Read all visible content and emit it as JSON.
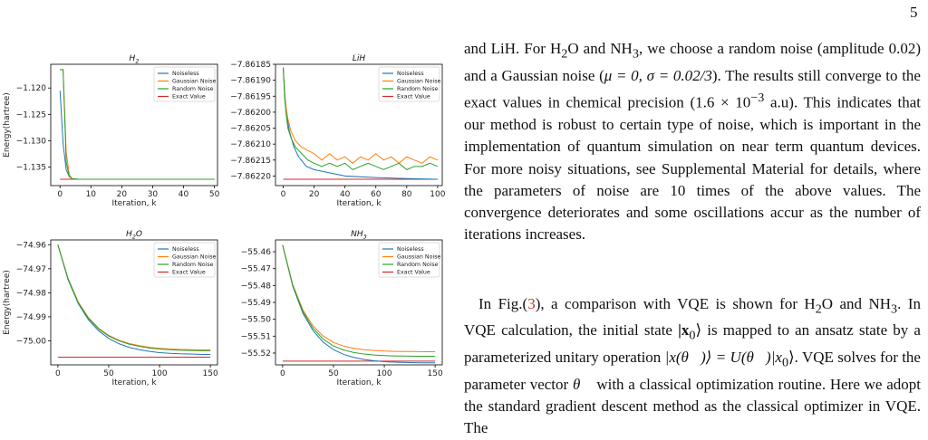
{
  "page": {
    "number": "5"
  },
  "figure": {
    "legend_entries": [
      {
        "name": "Noiseless",
        "color": "#1f77b4"
      },
      {
        "name": "Gaussian Noise",
        "color": "#ff7f0e"
      },
      {
        "name": "Random Noise",
        "color": "#2ca02c"
      },
      {
        "name": "Exact Value",
        "color": "#d62728"
      }
    ]
  },
  "chart_data": [
    {
      "type": "line",
      "title": "H_2",
      "title_parts": {
        "base": "H",
        "sub": "2"
      },
      "xlabel": "Iteration, k",
      "ylabel": "Energy(hartree)",
      "xlim": [
        -3,
        51
      ],
      "ylim": [
        -1.1385,
        -1.1155
      ],
      "xticks": [
        0,
        10,
        20,
        30,
        40,
        50
      ],
      "yticks": [
        -1.12,
        -1.125,
        -1.13,
        -1.135
      ],
      "ytick_labels": [
        "−1.120",
        "−1.125",
        "−1.130",
        "−1.135"
      ],
      "grid": false,
      "legend_position": "top-right",
      "series": [
        {
          "name": "Noiseless",
          "color": "#1f77b4",
          "x": [
            0,
            1,
            2,
            3,
            4,
            6,
            10,
            50
          ],
          "y": [
            -1.1205,
            -1.1305,
            -1.1355,
            -1.1368,
            -1.1372,
            -1.1373,
            -1.1373,
            -1.1373
          ]
        },
        {
          "name": "Gaussian Noise",
          "color": "#ff7f0e",
          "x": [
            0,
            1,
            2,
            3,
            4,
            6,
            10,
            50
          ],
          "y": [
            -1.1165,
            -1.1165,
            -1.132,
            -1.1365,
            -1.1372,
            -1.1373,
            -1.1373,
            -1.1373
          ]
        },
        {
          "name": "Random Noise",
          "color": "#2ca02c",
          "x": [
            0,
            1,
            2,
            3,
            4,
            6,
            10,
            50
          ],
          "y": [
            -1.1165,
            -1.1165,
            -1.134,
            -1.1368,
            -1.1372,
            -1.1373,
            -1.1373,
            -1.1373
          ]
        },
        {
          "name": "Exact Value",
          "color": "#d62728",
          "x": [
            0,
            50
          ],
          "y": [
            -1.1373,
            -1.1373
          ]
        }
      ]
    },
    {
      "type": "line",
      "title": "LiH",
      "xlabel": "Iteration, k",
      "ylabel": "",
      "xlim": [
        -5,
        103
      ],
      "ylim": [
        -7.86223,
        -7.86185
      ],
      "xticks": [
        0,
        20,
        40,
        60,
        80,
        100
      ],
      "yticks": [
        -7.86185,
        -7.8619,
        -7.86195,
        -7.862,
        -7.86205,
        -7.8621,
        -7.86215,
        -7.8622
      ],
      "ytick_labels": [
        "−7.86185",
        "−7.86190",
        "−7.86195",
        "−7.86200",
        "−7.86205",
        "−7.86210",
        "−7.86215",
        "−7.86220"
      ],
      "grid": false,
      "legend_position": "top-right",
      "series": [
        {
          "name": "Noiseless",
          "color": "#1f77b4",
          "x": [
            0,
            1,
            2,
            4,
            7,
            10,
            15,
            20,
            30,
            40,
            60,
            80,
            100
          ],
          "y": [
            -7.86186,
            -7.86194,
            -7.862,
            -7.86206,
            -7.86211,
            -7.86214,
            -7.86217,
            -7.86218,
            -7.86219,
            -7.8622,
            -7.862205,
            -7.862208,
            -7.86221
          ]
        },
        {
          "name": "Gaussian Noise",
          "color": "#ff7f0e",
          "x": [
            0,
            1,
            2,
            3,
            5,
            8,
            12,
            16,
            20,
            25,
            30,
            35,
            40,
            45,
            50,
            55,
            60,
            65,
            70,
            75,
            80,
            85,
            90,
            95,
            100
          ],
          "y": [
            -7.86186,
            -7.86195,
            -7.86199,
            -7.86202,
            -7.86206,
            -7.86209,
            -7.86211,
            -7.86212,
            -7.86213,
            -7.86215,
            -7.86213,
            -7.86215,
            -7.86214,
            -7.86216,
            -7.86214,
            -7.86215,
            -7.86213,
            -7.86215,
            -7.86214,
            -7.86216,
            -7.86214,
            -7.86215,
            -7.86216,
            -7.86214,
            -7.86215
          ]
        },
        {
          "name": "Random Noise",
          "color": "#2ca02c",
          "x": [
            0,
            1,
            2,
            3,
            5,
            8,
            12,
            16,
            20,
            25,
            30,
            35,
            40,
            45,
            50,
            55,
            60,
            65,
            70,
            75,
            80,
            85,
            90,
            95,
            100
          ],
          "y": [
            -7.86186,
            -7.86196,
            -7.86201,
            -7.86205,
            -7.86208,
            -7.86211,
            -7.86213,
            -7.86215,
            -7.86216,
            -7.86217,
            -7.86216,
            -7.86217,
            -7.86216,
            -7.86218,
            -7.86217,
            -7.86216,
            -7.86217,
            -7.86218,
            -7.86217,
            -7.86216,
            -7.86218,
            -7.86217,
            -7.86217,
            -7.86216,
            -7.86217
          ]
        },
        {
          "name": "Exact Value",
          "color": "#d62728",
          "x": [
            0,
            100
          ],
          "y": [
            -7.86221,
            -7.86221
          ]
        }
      ]
    },
    {
      "type": "line",
      "title": "H_2O",
      "title_parts": {
        "base": "H",
        "sub": "2",
        "tail": "O"
      },
      "xlabel": "Iteration, k",
      "ylabel": "Energy(hartree)",
      "xlim": [
        -7,
        157
      ],
      "ylim": [
        -75.01,
        -74.958
      ],
      "xticks": [
        0,
        50,
        100,
        150
      ],
      "yticks": [
        -74.96,
        -74.97,
        -74.98,
        -74.99,
        -75.0
      ],
      "ytick_labels": [
        "−74.96",
        "−74.97",
        "−74.98",
        "−74.99",
        "−75.00"
      ],
      "grid": false,
      "legend_position": "top-right",
      "series": [
        {
          "name": "Noiseless",
          "color": "#1f77b4",
          "x": [
            0,
            10,
            20,
            30,
            40,
            50,
            60,
            70,
            80,
            90,
            100,
            110,
            120,
            130,
            140,
            150
          ],
          "y": [
            -74.96,
            -74.9745,
            -74.9845,
            -74.9912,
            -74.9958,
            -74.999,
            -75.0012,
            -75.0027,
            -75.0037,
            -75.0044,
            -75.0049,
            -75.0052,
            -75.0054,
            -75.0055,
            -75.0056,
            -75.0057
          ]
        },
        {
          "name": "Gaussian Noise",
          "color": "#ff7f0e",
          "x": [
            0,
            10,
            20,
            30,
            40,
            50,
            60,
            70,
            80,
            90,
            100,
            110,
            120,
            130,
            140,
            150
          ],
          "y": [
            -74.96,
            -74.974,
            -74.9838,
            -74.9903,
            -74.9947,
            -74.9977,
            -74.9997,
            -75.0011,
            -75.002,
            -75.0027,
            -75.0031,
            -75.0034,
            -75.0036,
            -75.0037,
            -75.0038,
            -75.0038
          ]
        },
        {
          "name": "Random Noise",
          "color": "#2ca02c",
          "x": [
            0,
            10,
            20,
            30,
            40,
            50,
            60,
            70,
            80,
            90,
            100,
            110,
            120,
            130,
            140,
            150
          ],
          "y": [
            -74.96,
            -74.9742,
            -74.9841,
            -74.9906,
            -74.995,
            -74.998,
            -75.0,
            -75.0014,
            -75.0023,
            -75.003,
            -75.0034,
            -75.0037,
            -75.0039,
            -75.004,
            -75.0041,
            -75.0041
          ]
        },
        {
          "name": "Exact Value",
          "color": "#d62728",
          "x": [
            0,
            150
          ],
          "y": [
            -75.0068,
            -75.0068
          ]
        }
      ]
    },
    {
      "type": "line",
      "title": "NH_3",
      "title_parts": {
        "base": "NH",
        "sub": "3"
      },
      "xlabel": "Iteration, k",
      "ylabel": "",
      "xlim": [
        -7,
        157
      ],
      "ylim": [
        -55.527,
        -55.453
      ],
      "xticks": [
        0,
        50,
        100,
        150
      ],
      "yticks": [
        -55.46,
        -55.47,
        -55.48,
        -55.49,
        -55.5,
        -55.51,
        -55.52
      ],
      "ytick_labels": [
        "−55.46",
        "−55.47",
        "−55.48",
        "−55.49",
        "−55.50",
        "−55.51",
        "−55.52"
      ],
      "grid": false,
      "legend_position": "top-right",
      "series": [
        {
          "name": "Noiseless",
          "color": "#1f77b4",
          "x": [
            0,
            10,
            20,
            30,
            40,
            50,
            60,
            70,
            80,
            90,
            100,
            110,
            120,
            130,
            140,
            150
          ],
          "y": [
            -55.456,
            -55.4805,
            -55.4965,
            -55.5068,
            -55.5136,
            -55.518,
            -55.5208,
            -55.5226,
            -55.5238,
            -55.5246,
            -55.5251,
            -55.5254,
            -55.5256,
            -55.5257,
            -55.5258,
            -55.5258
          ]
        },
        {
          "name": "Gaussian Noise",
          "color": "#ff7f0e",
          "x": [
            0,
            10,
            20,
            30,
            40,
            50,
            60,
            70,
            80,
            90,
            100,
            110,
            120,
            130,
            140,
            150
          ],
          "y": [
            -55.456,
            -55.4795,
            -55.4945,
            -55.504,
            -55.51,
            -55.5137,
            -55.5159,
            -55.5172,
            -55.518,
            -55.5185,
            -55.5188,
            -55.519,
            -55.5191,
            -55.5191,
            -55.5192,
            -55.5192
          ]
        },
        {
          "name": "Random Noise",
          "color": "#2ca02c",
          "x": [
            0,
            10,
            20,
            30,
            40,
            50,
            60,
            70,
            80,
            90,
            100,
            110,
            120,
            130,
            140,
            150
          ],
          "y": [
            -55.456,
            -55.48,
            -55.4955,
            -55.5054,
            -55.5118,
            -55.5158,
            -55.5182,
            -55.5197,
            -55.5206,
            -55.5212,
            -55.5215,
            -55.5217,
            -55.5218,
            -55.5219,
            -55.5219,
            -55.5219
          ]
        },
        {
          "name": "Exact Value",
          "color": "#d62728",
          "x": [
            0,
            150
          ],
          "y": [
            -55.5248,
            -55.5248
          ]
        }
      ]
    }
  ],
  "text": {
    "para1": {
      "s1": "and LiH. For H",
      "s1_sub": "2",
      "s2": "O and NH",
      "s2_sub": "3",
      "s3": ", we choose a random noise (amplitude 0.02) and a Gaussian noise (",
      "mu_eq": "μ = 0, σ = 0.02/3",
      "s4": "). The results still converge to the exact values in chemical precision (",
      "prec": "1.6 × 10",
      "prec_sup": "−3",
      "s5": " a.u). This indicates that our method is robust to certain type of noise, which is important in the implementation of quantum simulation on near term quantum devices. For more noisy situations, see Supplemental Material for details, where the parameters of noise are 10 times of the above values. The convergence deteriorates and some oscillations accur as the number of iterations increases."
    },
    "para2": {
      "s1": "In Fig.(",
      "cite": "3",
      "s2": "), a comparison with VQE is shown for H",
      "s2_sub": "2",
      "s3": "O and NH",
      "s3_sub": "3",
      "s4": ". In VQE calculation, the initial state ",
      "ket1": "|x",
      "ket1_sub": "0",
      "ket1_end": "⟩",
      "s5": " is mapped to an ansatz state by a parameterized unitary operation ",
      "ket2": "|x(θ⃗)⟩ = U(θ⃗)|x",
      "ket2_sub": "0",
      "ket2_end": "⟩",
      "s6": ". VQE solves for the parameter vector ",
      "theta": "θ⃗",
      "s7": " with a classical optimization routine. Here we adopt the standard gradient descent method as the classical optimizer in VQE. The"
    }
  }
}
